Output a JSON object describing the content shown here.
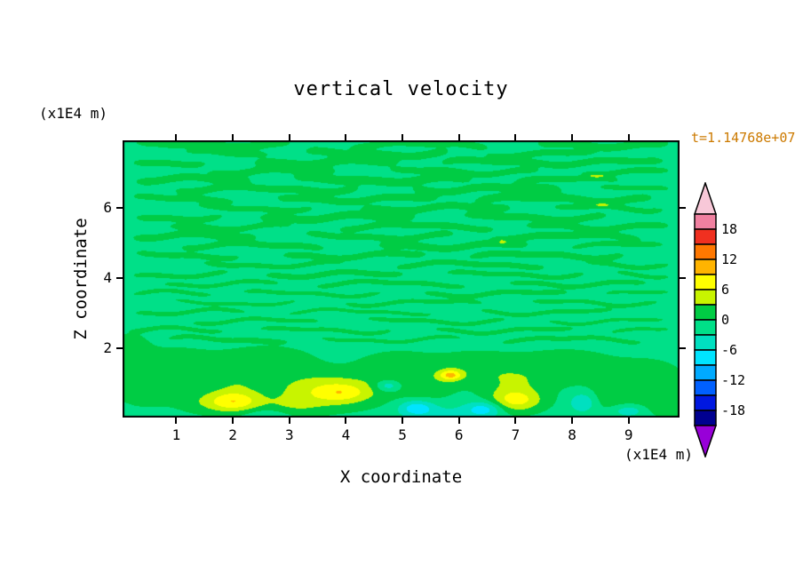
{
  "page": {
    "background": "#ffffff"
  },
  "title": "vertical velocity",
  "time_label": {
    "text": "t=1.14768e+07",
    "color": "#cc7a00"
  },
  "axes": {
    "x_title": "X coordinate",
    "z_title": "Z coordinate",
    "x_unit": "(x1E4 m)",
    "z_unit": "(x1E4 m)"
  },
  "chart_data": {
    "type": "filled_contour",
    "title": "vertical velocity",
    "xlabel": "X coordinate (x1E4 m)",
    "ylabel": "Z coordinate (x1E4 m)",
    "x_range": [
      0.05,
      9.9
    ],
    "z_range": [
      0.05,
      7.9
    ],
    "x_ticks": [
      "1",
      "2",
      "3",
      "4",
      "5",
      "6",
      "7",
      "8",
      "9"
    ],
    "z_ticks": [
      "2",
      "4",
      "6"
    ],
    "x_tick_values": [
      1,
      2,
      3,
      4,
      5,
      6,
      7,
      8,
      9
    ],
    "z_tick_values": [
      2,
      4,
      6
    ],
    "contour_levels": [
      -21,
      -18,
      -15,
      -12,
      -9,
      -6,
      -3,
      0,
      3,
      6,
      9,
      12,
      15,
      18,
      21
    ],
    "colorbar": {
      "tick_labels": [
        "18",
        "12",
        "6",
        "0",
        "-6",
        "-12",
        "-18"
      ],
      "tick_values": [
        18,
        12,
        6,
        0,
        -6,
        -12,
        -18
      ],
      "band_colors_low_to_high": [
        "#000090",
        "#0018e0",
        "#0060ff",
        "#00aaff",
        "#00e4ff",
        "#00e0c0",
        "#00e088",
        "#00cc44",
        "#c8f400",
        "#ffff00",
        "#ffb400",
        "#ff7800",
        "#f03020",
        "#f080a0"
      ],
      "under_color": "#9800d8",
      "over_color": "#f8c8d8",
      "outline_color": "#000000"
    },
    "field": {
      "background": -1.2,
      "wiggle": [
        0.06,
        2.4,
        0.03,
        5.1
      ],
      "streaks": [
        [
          0.2,
          3.1,
          7.78,
          0.12,
          3.2,
          0.0
        ],
        [
          4.0,
          6.6,
          7.78,
          0.1,
          3.0,
          1.4
        ],
        [
          7.3,
          9.8,
          7.78,
          0.11,
          3.1,
          2.8
        ],
        [
          1.1,
          2.7,
          7.52,
          0.08,
          3.0,
          4.2
        ],
        [
          3.2,
          5.9,
          7.52,
          0.11,
          3.2,
          5.6
        ],
        [
          6.4,
          8.5,
          7.52,
          0.09,
          3.0,
          0.9
        ],
        [
          0.15,
          1.6,
          7.28,
          0.09,
          3.1,
          2.3
        ],
        [
          2.3,
          5.0,
          7.28,
          0.12,
          3.3,
          3.7
        ],
        [
          5.6,
          9.7,
          7.28,
          0.1,
          3.0,
          5.1
        ],
        [
          1.5,
          3.9,
          7.02,
          0.1,
          3.2,
          0.5
        ],
        [
          4.7,
          7.5,
          7.02,
          0.09,
          3.0,
          1.9
        ],
        [
          8.1,
          9.8,
          7.02,
          0.08,
          3.1,
          3.3
        ],
        [
          0.2,
          2.4,
          6.78,
          0.11,
          3.0,
          4.7
        ],
        [
          3.0,
          6.3,
          6.78,
          0.12,
          3.3,
          6.1
        ],
        [
          6.9,
          8.9,
          6.78,
          0.09,
          3.0,
          1.1
        ],
        [
          0.9,
          4.3,
          6.52,
          0.1,
          3.2,
          2.5
        ],
        [
          5.1,
          7.9,
          6.52,
          0.11,
          3.1,
          3.9
        ],
        [
          8.4,
          9.8,
          6.52,
          0.07,
          3.0,
          5.3
        ],
        [
          0.15,
          2.1,
          6.24,
          0.09,
          3.0,
          0.2
        ],
        [
          2.7,
          5.7,
          6.24,
          0.1,
          3.2,
          1.6
        ],
        [
          6.2,
          9.5,
          6.24,
          0.11,
          3.1,
          3.0
        ],
        [
          1.3,
          3.5,
          5.98,
          0.08,
          3.0,
          4.4
        ],
        [
          4.2,
          7.0,
          5.98,
          0.1,
          3.2,
          5.8
        ],
        [
          7.6,
          9.7,
          5.98,
          0.08,
          3.0,
          0.8
        ],
        [
          0.2,
          1.9,
          5.72,
          0.09,
          3.1,
          2.2
        ],
        [
          2.4,
          5.3,
          5.72,
          0.11,
          3.3,
          3.6
        ],
        [
          6.0,
          8.7,
          5.72,
          0.1,
          3.0,
          5.0
        ],
        [
          0.8,
          3.1,
          5.46,
          0.08,
          3.0,
          0.4
        ],
        [
          3.8,
          6.7,
          5.46,
          0.09,
          3.1,
          1.8
        ],
        [
          7.1,
          9.8,
          5.46,
          0.09,
          3.0,
          3.2
        ],
        [
          0.15,
          2.5,
          5.18,
          0.1,
          3.2,
          4.6
        ],
        [
          3.2,
          6.0,
          5.18,
          0.09,
          3.0,
          6.0
        ],
        [
          6.5,
          9.3,
          5.18,
          0.1,
          3.1,
          1.0
        ],
        [
          1.0,
          3.7,
          4.92,
          0.09,
          3.0,
          2.4
        ],
        [
          4.5,
          7.3,
          4.92,
          0.1,
          3.2,
          3.8
        ],
        [
          7.9,
          9.7,
          4.92,
          0.07,
          3.0,
          5.2
        ],
        [
          0.2,
          2.2,
          4.64,
          0.08,
          3.1,
          0.6
        ],
        [
          2.8,
          5.5,
          4.64,
          0.09,
          3.0,
          2.0
        ],
        [
          6.1,
          9.0,
          4.64,
          0.09,
          3.2,
          3.4
        ],
        [
          1.4,
          4.0,
          4.38,
          0.07,
          3.0,
          4.8
        ],
        [
          4.8,
          7.6,
          4.38,
          0.08,
          3.1,
          6.2
        ],
        [
          8.2,
          9.8,
          4.38,
          0.07,
          3.0,
          1.2
        ],
        [
          0.15,
          2.0,
          4.1,
          0.07,
          3.0,
          2.6
        ],
        [
          2.5,
          5.1,
          4.1,
          0.08,
          3.2,
          4.0
        ],
        [
          5.7,
          8.3,
          4.1,
          0.07,
          3.0,
          5.4
        ],
        [
          8.7,
          9.8,
          4.1,
          0.06,
          3.1,
          0.3
        ],
        [
          0.7,
          2.9,
          3.84,
          0.06,
          3.0,
          1.7
        ],
        [
          3.4,
          6.2,
          3.84,
          0.07,
          3.1,
          3.1
        ],
        [
          6.8,
          9.4,
          3.84,
          0.07,
          3.0,
          4.5
        ],
        [
          0.15,
          1.7,
          3.56,
          0.06,
          3.1,
          5.9
        ],
        [
          2.1,
          4.7,
          3.56,
          0.06,
          3.0,
          1.5
        ],
        [
          5.3,
          8.0,
          3.56,
          0.07,
          3.2,
          2.9
        ],
        [
          8.5,
          9.8,
          3.56,
          0.05,
          3.0,
          4.3
        ],
        [
          0.9,
          3.2,
          3.3,
          0.05,
          3.0,
          5.7
        ],
        [
          3.9,
          6.5,
          3.3,
          0.06,
          3.1,
          0.7
        ],
        [
          7.2,
          9.6,
          3.3,
          0.06,
          3.0,
          2.1
        ],
        [
          0.2,
          2.3,
          3.04,
          0.06,
          3.2,
          3.5
        ],
        [
          2.9,
          5.6,
          3.04,
          0.05,
          3.0,
          4.9
        ],
        [
          6.3,
          8.8,
          3.04,
          0.06,
          3.1,
          0.1
        ],
        [
          1.2,
          3.6,
          2.78,
          0.06,
          3.0,
          1.5
        ],
        [
          4.3,
          6.9,
          2.78,
          0.06,
          3.2,
          2.9
        ],
        [
          7.5,
          9.7,
          2.78,
          0.05,
          3.0,
          4.3
        ],
        [
          0.15,
          1.9,
          2.52,
          0.06,
          3.1,
          5.7
        ],
        [
          2.4,
          4.9,
          2.52,
          0.06,
          3.0,
          0.6
        ],
        [
          5.5,
          8.1,
          2.52,
          0.06,
          3.2,
          2.0
        ],
        [
          8.6,
          9.8,
          2.52,
          0.05,
          3.0,
          3.4
        ],
        [
          0.8,
          3.0,
          2.26,
          0.06,
          3.0,
          4.8
        ],
        [
          3.5,
          6.1,
          2.26,
          0.05,
          3.1,
          6.2
        ],
        [
          6.7,
          9.3,
          2.26,
          0.06,
          3.0,
          1.3
        ]
      ],
      "blobs": [
        [
          0.45,
          0.85,
          0.55,
          0.5,
          3.1
        ],
        [
          0.9,
          1.55,
          0.8,
          0.5,
          3.0
        ],
        [
          1.55,
          0.5,
          0.55,
          0.35,
          3.2
        ],
        [
          2.6,
          1.6,
          0.9,
          0.5,
          3.0
        ],
        [
          3.0,
          0.35,
          0.55,
          0.3,
          3.0
        ],
        [
          4.9,
          1.5,
          0.7,
          0.45,
          2.9
        ],
        [
          5.4,
          0.9,
          0.5,
          0.4,
          2.8
        ],
        [
          6.3,
          1.45,
          0.8,
          0.5,
          3.0
        ],
        [
          7.9,
          1.5,
          0.9,
          0.5,
          3.0
        ],
        [
          8.6,
          0.6,
          0.6,
          0.4,
          3.2
        ],
        [
          9.35,
          1.15,
          0.65,
          0.55,
          3.0
        ],
        [
          9.65,
          0.45,
          0.45,
          0.4,
          3.0
        ],
        [
          0.2,
          1.95,
          0.3,
          0.5,
          3.0
        ],
        [
          2.05,
          1.05,
          0.5,
          0.35,
          2.6
        ],
        [
          7.0,
          1.1,
          0.6,
          0.35,
          2.6
        ],
        [
          2.05,
          0.5,
          0.45,
          0.3,
          8.2
        ],
        [
          3.7,
          0.8,
          0.95,
          0.48,
          7.0
        ],
        [
          3.95,
          0.75,
          0.42,
          0.24,
          3.6
        ],
        [
          7.0,
          0.55,
          0.48,
          0.34,
          8.6
        ],
        [
          5.85,
          1.25,
          0.2,
          0.15,
          8.8
        ],
        [
          5.25,
          0.33,
          0.3,
          0.22,
          -6.8
        ],
        [
          6.45,
          0.3,
          0.32,
          0.22,
          -6.6
        ],
        [
          4.75,
          0.95,
          0.22,
          0.16,
          -5.6
        ],
        [
          8.2,
          0.5,
          0.26,
          0.3,
          -6.0
        ],
        [
          5.8,
          0.15,
          0.7,
          0.25,
          -2.4
        ],
        [
          2.62,
          0.15,
          0.45,
          0.2,
          -2.4
        ],
        [
          9.0,
          0.25,
          0.3,
          0.18,
          -4.6
        ]
      ]
    }
  }
}
